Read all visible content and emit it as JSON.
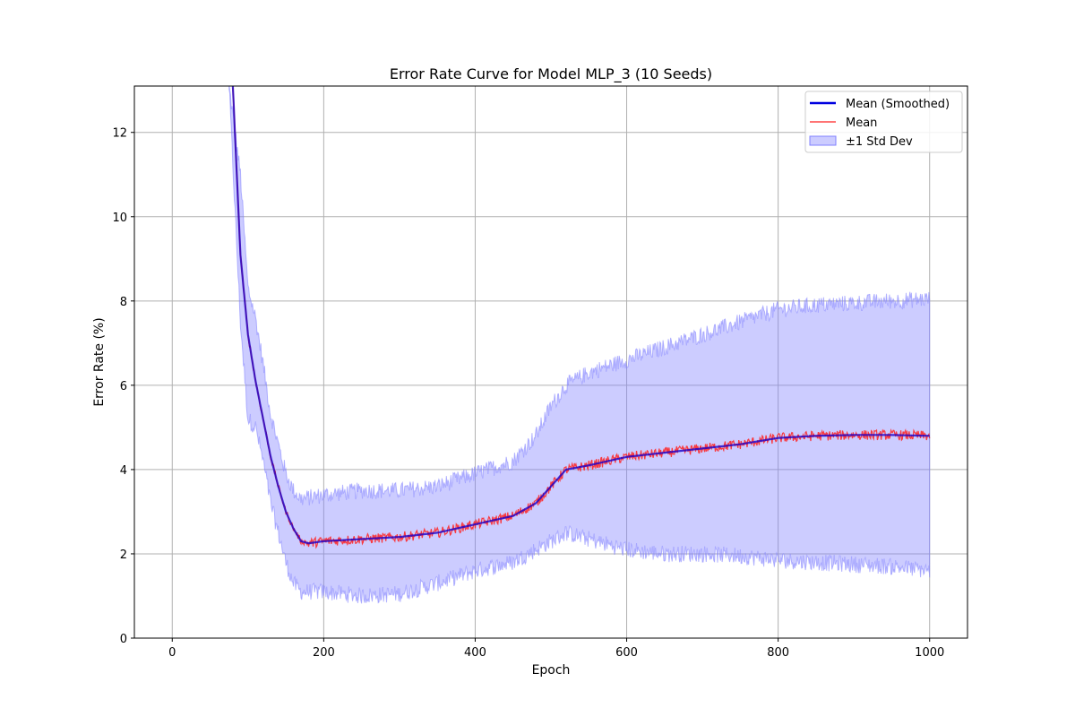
{
  "chart_data": {
    "type": "line",
    "title": "Error Rate Curve for Model MLP_3 (10 Seeds)",
    "xlabel": "Epoch",
    "ylabel": "Error Rate (%)",
    "xlim": [
      -50,
      1050
    ],
    "ylim": [
      0,
      13.1
    ],
    "xticks": [
      0,
      200,
      400,
      600,
      800,
      1000
    ],
    "yticks": [
      0,
      2,
      4,
      6,
      8,
      10,
      12
    ],
    "grid": true,
    "legend_position": "top-right",
    "legend": [
      {
        "label": "Mean (Smoothed)",
        "kind": "line",
        "color": "#0000e0"
      },
      {
        "label": "Mean",
        "kind": "line",
        "color": "#ff2020"
      },
      {
        "label": "±1 Std Dev",
        "kind": "band",
        "color": "#8080ff"
      }
    ],
    "series": [
      {
        "name": "Mean (Smoothed)",
        "color": "#1a00c8",
        "epochs": [
          80,
          90,
          100,
          110,
          120,
          130,
          140,
          150,
          160,
          170,
          180,
          200,
          250,
          300,
          350,
          400,
          450,
          480,
          500,
          520,
          550,
          600,
          650,
          700,
          750,
          800,
          850,
          900,
          950,
          1000
        ],
        "values": [
          13.1,
          9.1,
          7.2,
          6.1,
          5.2,
          4.3,
          3.6,
          3.0,
          2.6,
          2.3,
          2.25,
          2.3,
          2.35,
          2.4,
          2.5,
          2.7,
          2.9,
          3.2,
          3.6,
          4.0,
          4.1,
          4.3,
          4.4,
          4.5,
          4.6,
          4.75,
          4.8,
          4.82,
          4.82,
          4.8
        ]
      },
      {
        "name": "Mean",
        "color": "#ff2020",
        "epochs": [
          80,
          90,
          100,
          110,
          120,
          130,
          140,
          150,
          160,
          170,
          180,
          200,
          250,
          300,
          350,
          400,
          450,
          480,
          500,
          520,
          550,
          600,
          650,
          700,
          750,
          800,
          850,
          900,
          950,
          1000
        ],
        "values": [
          13.1,
          9.1,
          7.2,
          6.1,
          5.2,
          4.3,
          3.6,
          3.0,
          2.6,
          2.3,
          2.25,
          2.3,
          2.35,
          2.4,
          2.5,
          2.7,
          2.9,
          3.2,
          3.6,
          4.0,
          4.1,
          4.3,
          4.4,
          4.5,
          4.6,
          4.75,
          4.8,
          4.82,
          4.82,
          4.8
        ],
        "noise_amplitude": 0.12
      },
      {
        "name": "±1 Std Dev",
        "color": "#8080ff",
        "epochs": [
          75,
          90,
          100,
          110,
          120,
          130,
          140,
          150,
          160,
          170,
          200,
          250,
          300,
          350,
          400,
          450,
          480,
          500,
          520,
          550,
          600,
          650,
          700,
          750,
          800,
          850,
          900,
          950,
          1000
        ],
        "upper": [
          13.1,
          11.0,
          8.3,
          7.6,
          6.5,
          5.3,
          4.6,
          3.9,
          3.5,
          3.3,
          3.4,
          3.5,
          3.5,
          3.6,
          3.9,
          4.2,
          4.8,
          5.5,
          6.0,
          6.3,
          6.6,
          6.9,
          7.2,
          7.5,
          7.8,
          7.9,
          7.95,
          8.0,
          8.05
        ],
        "lower": [
          13.1,
          7.5,
          5.2,
          5.0,
          4.2,
          3.2,
          2.5,
          1.8,
          1.3,
          1.1,
          1.1,
          1.0,
          1.05,
          1.3,
          1.6,
          1.8,
          2.1,
          2.3,
          2.5,
          2.35,
          2.1,
          2.0,
          2.0,
          1.95,
          1.85,
          1.8,
          1.75,
          1.7,
          1.6
        ],
        "noise_amplitude": 0.2
      }
    ]
  }
}
